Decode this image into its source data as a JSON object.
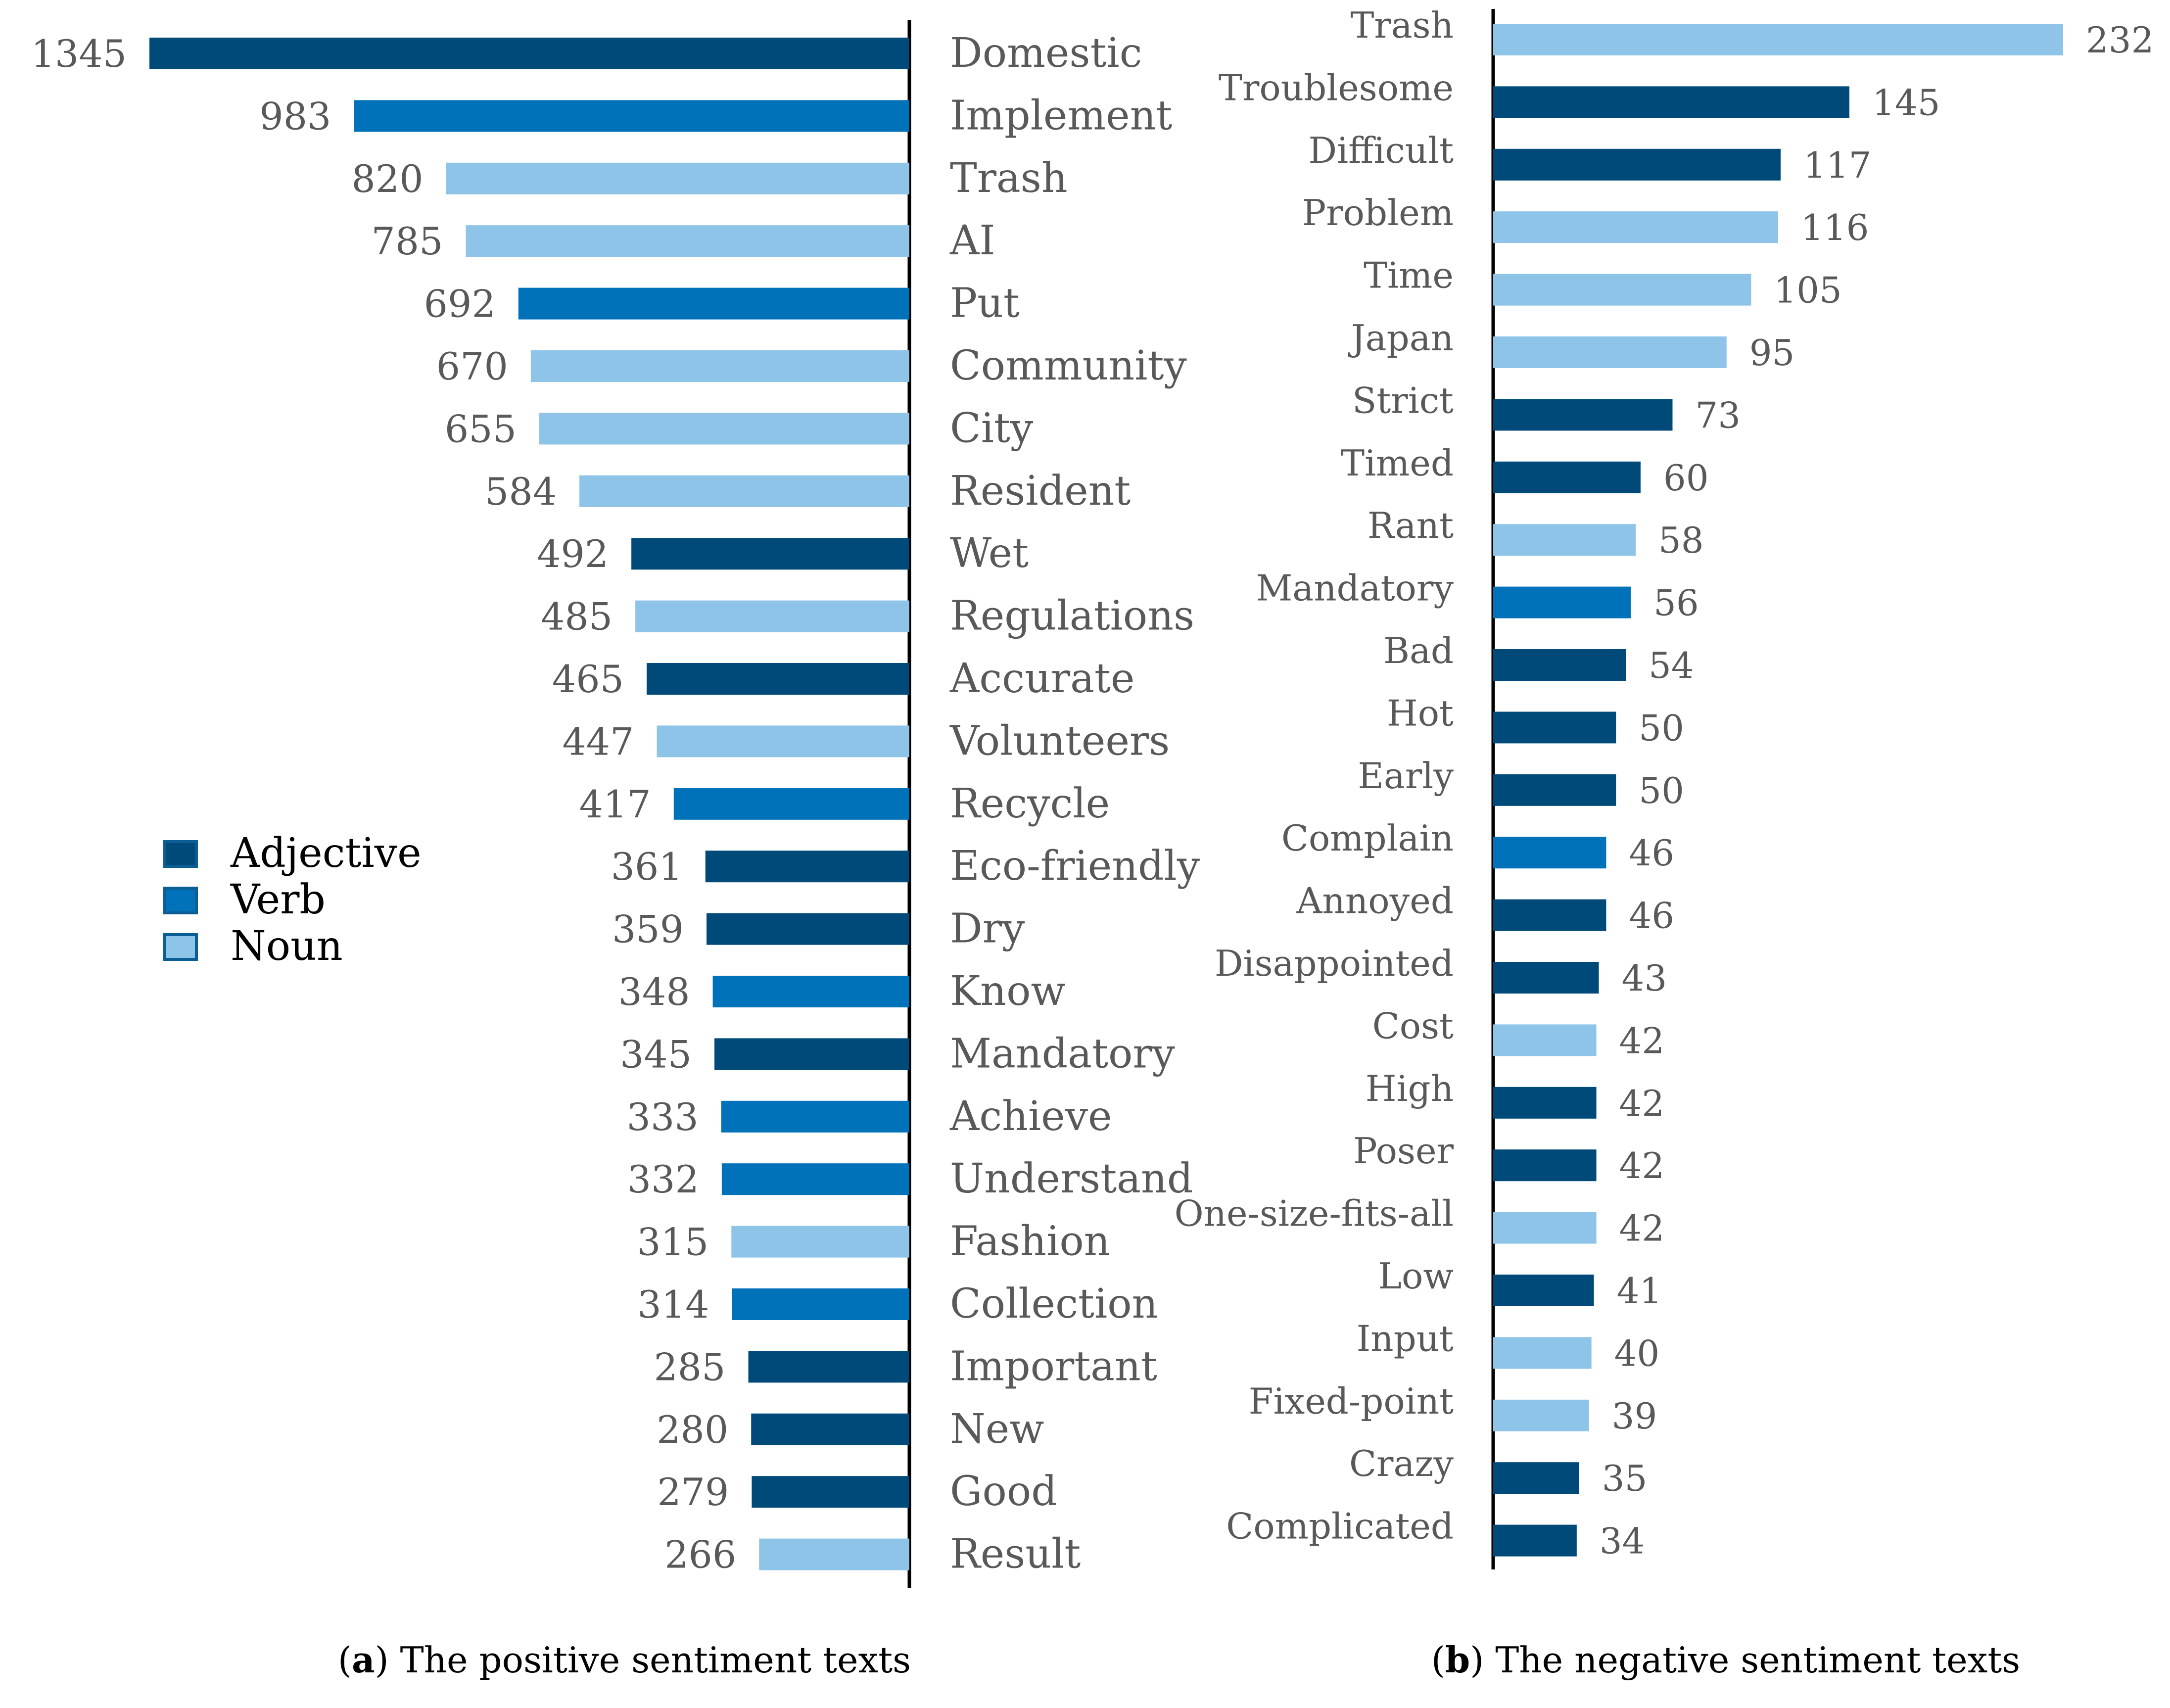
{
  "colors": {
    "Adjective": "#004a7a",
    "Verb": "#0072ba",
    "Noun": "#8dc4e8",
    "axis": "#000000",
    "text": "#595959"
  },
  "legend": {
    "items": [
      "Adjective",
      "Verb",
      "Noun"
    ]
  },
  "captions": {
    "a": {
      "letter": "a",
      "text": "The positive sentiment texts"
    },
    "b": {
      "letter": "b",
      "text": "The negative sentiment texts"
    }
  },
  "chart_data": [
    {
      "type": "bar",
      "orientation": "horizontal",
      "direction": "leftward",
      "title": "The positive sentiment texts",
      "panel": "a",
      "xlim": [
        0,
        1345
      ],
      "legend_position": "left",
      "categories": [
        "Domestic",
        "Implement",
        "Trash",
        "AI",
        "Put",
        "Community",
        "City",
        "Resident",
        "Wet",
        "Regulations",
        "Accurate",
        "Volunteers",
        "Recycle",
        "Eco-friendly",
        "Dry",
        "Know",
        "Mandatory",
        "Achieve",
        "Understand",
        "Fashion",
        "Collection",
        "Important",
        "New",
        "Good",
        "Result"
      ],
      "values": [
        1345,
        983,
        820,
        785,
        692,
        670,
        655,
        584,
        492,
        485,
        465,
        447,
        417,
        361,
        359,
        348,
        345,
        333,
        332,
        315,
        314,
        285,
        280,
        279,
        266
      ],
      "pos": [
        "Adjective",
        "Verb",
        "Noun",
        "Noun",
        "Verb",
        "Noun",
        "Noun",
        "Noun",
        "Adjective",
        "Noun",
        "Adjective",
        "Noun",
        "Verb",
        "Adjective",
        "Adjective",
        "Verb",
        "Adjective",
        "Verb",
        "Verb",
        "Noun",
        "Verb",
        "Adjective",
        "Adjective",
        "Adjective",
        "Noun"
      ]
    },
    {
      "type": "bar",
      "orientation": "horizontal",
      "direction": "rightward",
      "title": "The negative sentiment texts",
      "panel": "b",
      "xlim": [
        0,
        232
      ],
      "categories": [
        "Trash",
        "Troublesome",
        "Difficult",
        "Problem",
        "Time",
        "Japan",
        "Strict",
        "Timed",
        "Rant",
        "Mandatory",
        "Bad",
        "Hot",
        "Early",
        "Complain",
        "Annoyed",
        "Disappointed",
        "Cost",
        "High",
        "Poser",
        "One-size-fits-all",
        "Low",
        "Input",
        "Fixed-point",
        "Crazy",
        "Complicated"
      ],
      "values": [
        232,
        145,
        117,
        116,
        105,
        95,
        73,
        60,
        58,
        56,
        54,
        50,
        50,
        46,
        46,
        43,
        42,
        42,
        42,
        42,
        41,
        40,
        39,
        35,
        34
      ],
      "pos": [
        "Noun",
        "Adjective",
        "Adjective",
        "Noun",
        "Noun",
        "Noun",
        "Adjective",
        "Adjective",
        "Noun",
        "Verb",
        "Adjective",
        "Adjective",
        "Adjective",
        "Verb",
        "Adjective",
        "Adjective",
        "Noun",
        "Adjective",
        "Adjective",
        "Noun",
        "Adjective",
        "Noun",
        "Noun",
        "Adjective",
        "Adjective"
      ]
    }
  ]
}
